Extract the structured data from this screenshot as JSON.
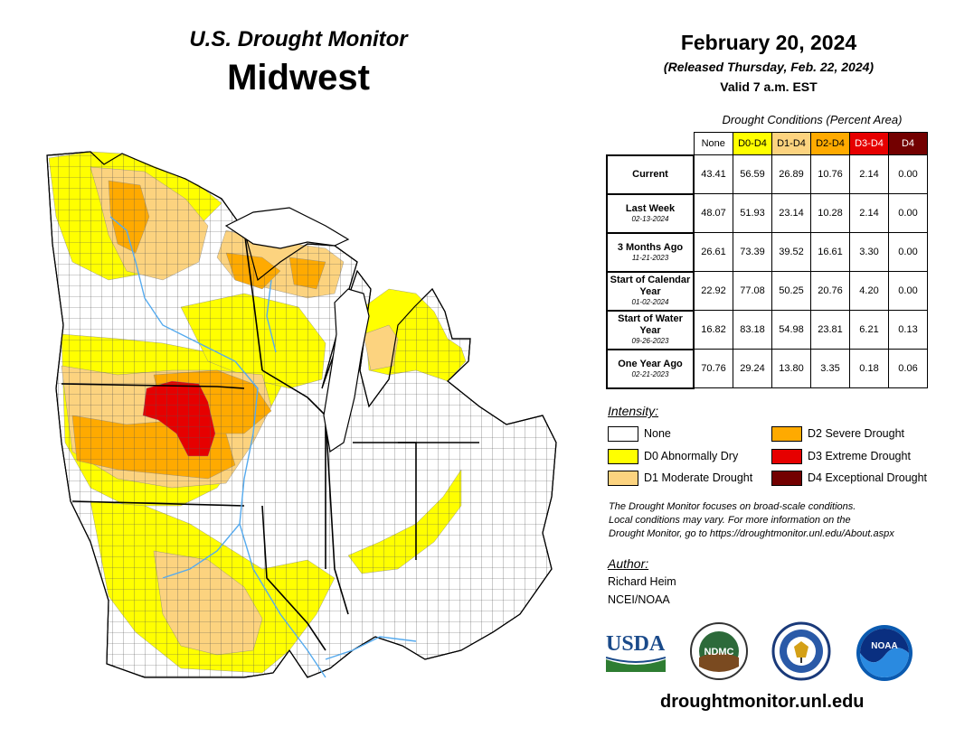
{
  "header": {
    "title": "U.S. Drought Monitor",
    "region": "Midwest",
    "date": "February 20, 2024",
    "released": "(Released Thursday, Feb. 22, 2024)",
    "valid": "Valid 7 a.m. EST"
  },
  "table": {
    "caption": "Drought Conditions (Percent Area)",
    "columns": [
      {
        "label": "None",
        "color": "#ffffff",
        "text": "#000000"
      },
      {
        "label": "D0-D4",
        "color": "#ffff00",
        "text": "#000000"
      },
      {
        "label": "D1-D4",
        "color": "#fcd37f",
        "text": "#000000"
      },
      {
        "label": "D2-D4",
        "color": "#ffaa00",
        "text": "#000000"
      },
      {
        "label": "D3-D4",
        "color": "#e60000",
        "text": "#ffffff"
      },
      {
        "label": "D4",
        "color": "#730000",
        "text": "#ffffff"
      }
    ],
    "rows": [
      {
        "label": "Current",
        "date": "",
        "values": [
          "43.41",
          "56.59",
          "26.89",
          "10.76",
          "2.14",
          "0.00"
        ]
      },
      {
        "label": "Last Week",
        "date": "02-13-2024",
        "values": [
          "48.07",
          "51.93",
          "23.14",
          "10.28",
          "2.14",
          "0.00"
        ]
      },
      {
        "label": "3 Months Ago",
        "date": "11-21-2023",
        "values": [
          "26.61",
          "73.39",
          "39.52",
          "16.61",
          "3.30",
          "0.00"
        ]
      },
      {
        "label": "Start of Calendar Year",
        "date": "01-02-2024",
        "values": [
          "22.92",
          "77.08",
          "50.25",
          "20.76",
          "4.20",
          "0.00"
        ]
      },
      {
        "label": "Start of Water Year",
        "date": "09-26-2023",
        "values": [
          "16.82",
          "83.18",
          "54.98",
          "23.81",
          "6.21",
          "0.13"
        ]
      },
      {
        "label": "One Year Ago",
        "date": "02-21-2023",
        "values": [
          "70.76",
          "29.24",
          "13.80",
          "3.35",
          "0.18",
          "0.06"
        ]
      }
    ]
  },
  "legend": {
    "title": "Intensity:",
    "items": [
      {
        "label": "None",
        "color": "#ffffff"
      },
      {
        "label": "D0 Abnormally Dry",
        "color": "#ffff00"
      },
      {
        "label": "D1 Moderate Drought",
        "color": "#fcd37f"
      },
      {
        "label": "D2 Severe Drought",
        "color": "#ffaa00"
      },
      {
        "label": "D3 Extreme Drought",
        "color": "#e60000"
      },
      {
        "label": "D4 Exceptional Drought",
        "color": "#730000"
      }
    ]
  },
  "note": {
    "line1": "The Drought Monitor focuses on broad-scale conditions.",
    "line2": "Local conditions may vary. For more information on the",
    "line3": "Drought Monitor, go to https://droughtmonitor.unl.edu/About.aspx"
  },
  "author": {
    "label": "Author:",
    "name": "Richard Heim",
    "org": "NCEI/NOAA"
  },
  "logos": {
    "usda": "USDA",
    "ndmc": "NDMC",
    "noaa": "NOAA"
  },
  "footer": {
    "site": "droughtmonitor.unl.edu"
  },
  "colors": {
    "none": "#ffffff",
    "d0": "#ffff00",
    "d1": "#fcd37f",
    "d2": "#ffaa00",
    "d3": "#e60000",
    "d4": "#730000",
    "water": "#55aaee"
  }
}
